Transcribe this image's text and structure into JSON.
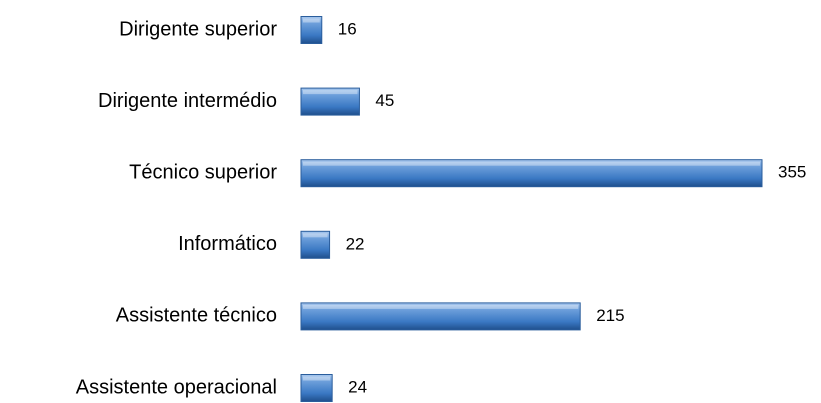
{
  "chart_data": {
    "type": "bar",
    "orientation": "horizontal",
    "categories": [
      "Dirigente superior",
      "Dirigente intermédio",
      "Técnico superior",
      "Informático",
      "Assistente técnico",
      "Assistente operacional"
    ],
    "values": [
      16,
      45,
      355,
      22,
      215,
      24
    ],
    "color": "#3a78c3"
  }
}
